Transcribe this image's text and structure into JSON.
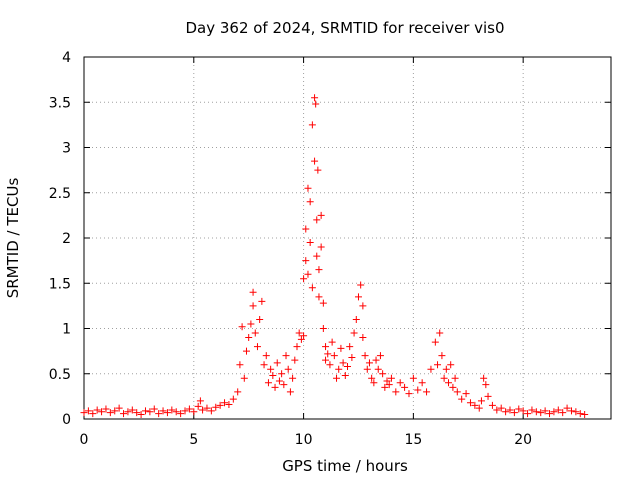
{
  "chart_data": {
    "type": "scatter",
    "title": "Day 362 of 2024, SRMTID for receiver vis0",
    "xlabel": "GPS time / hours",
    "ylabel": "SRMTID / TECUs",
    "xlim": [
      0,
      24
    ],
    "ylim": [
      0,
      4
    ],
    "xticks": [
      0,
      5,
      10,
      15,
      20
    ],
    "yticks": [
      0,
      0.5,
      1,
      1.5,
      2,
      2.5,
      3,
      3.5,
      4
    ],
    "xtick_labels": [
      "0",
      "5",
      "10",
      "15",
      "20"
    ],
    "ytick_labels": [
      "0",
      "0.5",
      "1",
      "1.5",
      "2",
      "2.5",
      "3",
      "3.5",
      "4"
    ],
    "grid": true,
    "marker": "plus",
    "color": "#ff0000",
    "series": [
      {
        "name": "SRMTID",
        "x": [
          0.0,
          0.2,
          0.4,
          0.6,
          0.8,
          1.0,
          1.2,
          1.4,
          1.6,
          1.8,
          2.0,
          2.2,
          2.4,
          2.6,
          2.8,
          3.0,
          3.2,
          3.4,
          3.6,
          3.8,
          4.0,
          4.2,
          4.4,
          4.6,
          4.8,
          5.0,
          5.2,
          5.3,
          5.4,
          5.6,
          5.8,
          6.0,
          6.2,
          6.4,
          6.6,
          6.8,
          7.0,
          7.1,
          7.2,
          7.3,
          7.4,
          7.5,
          7.6,
          7.7,
          7.7,
          7.8,
          7.9,
          8.0,
          8.1,
          8.2,
          8.3,
          8.4,
          8.5,
          8.6,
          8.7,
          8.8,
          8.9,
          9.0,
          9.1,
          9.2,
          9.3,
          9.4,
          9.5,
          9.6,
          9.7,
          9.8,
          9.9,
          10.0,
          10.0,
          10.1,
          10.1,
          10.2,
          10.2,
          10.3,
          10.3,
          10.4,
          10.4,
          10.5,
          10.5,
          10.55,
          10.6,
          10.6,
          10.65,
          10.7,
          10.7,
          10.8,
          10.8,
          10.9,
          10.9,
          11.0,
          11.0,
          11.1,
          11.2,
          11.3,
          11.4,
          11.5,
          11.6,
          11.7,
          11.8,
          11.9,
          12.0,
          12.1,
          12.2,
          12.3,
          12.4,
          12.5,
          12.6,
          12.7,
          12.7,
          12.8,
          12.9,
          13.0,
          13.1,
          13.2,
          13.3,
          13.4,
          13.5,
          13.6,
          13.7,
          13.8,
          13.9,
          14.0,
          14.2,
          14.4,
          14.6,
          14.8,
          15.0,
          15.2,
          15.4,
          15.6,
          15.8,
          16.0,
          16.1,
          16.2,
          16.3,
          16.4,
          16.5,
          16.6,
          16.7,
          16.8,
          16.9,
          17.0,
          17.2,
          17.4,
          17.6,
          17.8,
          18.0,
          18.1,
          18.2,
          18.3,
          18.4,
          18.6,
          18.8,
          19.0,
          19.2,
          19.4,
          19.6,
          19.8,
          20.0,
          20.2,
          20.4,
          20.6,
          20.8,
          21.0,
          21.2,
          21.4,
          21.6,
          21.8,
          22.0,
          22.2,
          22.4,
          22.6,
          22.8
        ],
        "y": [
          0.07,
          0.09,
          0.06,
          0.1,
          0.08,
          0.11,
          0.07,
          0.09,
          0.12,
          0.06,
          0.08,
          0.1,
          0.07,
          0.05,
          0.09,
          0.08,
          0.11,
          0.06,
          0.09,
          0.07,
          0.1,
          0.08,
          0.06,
          0.09,
          0.11,
          0.08,
          0.14,
          0.2,
          0.1,
          0.12,
          0.09,
          0.13,
          0.15,
          0.18,
          0.16,
          0.22,
          0.3,
          0.6,
          1.02,
          0.45,
          0.75,
          0.9,
          1.05,
          1.4,
          1.25,
          0.95,
          0.8,
          1.1,
          1.3,
          0.6,
          0.7,
          0.4,
          0.55,
          0.48,
          0.35,
          0.62,
          0.42,
          0.5,
          0.38,
          0.7,
          0.55,
          0.3,
          0.45,
          0.65,
          0.8,
          0.95,
          0.88,
          0.92,
          1.55,
          1.75,
          2.1,
          1.6,
          2.55,
          1.95,
          2.4,
          1.45,
          3.25,
          2.85,
          3.55,
          3.48,
          2.2,
          1.8,
          2.75,
          1.35,
          1.65,
          2.25,
          1.9,
          1.0,
          1.28,
          0.8,
          0.65,
          0.72,
          0.6,
          0.85,
          0.7,
          0.45,
          0.55,
          0.78,
          0.62,
          0.48,
          0.58,
          0.8,
          0.68,
          0.95,
          1.1,
          1.35,
          1.48,
          1.25,
          0.9,
          0.7,
          0.55,
          0.62,
          0.45,
          0.4,
          0.65,
          0.55,
          0.7,
          0.5,
          0.35,
          0.42,
          0.38,
          0.45,
          0.3,
          0.4,
          0.35,
          0.28,
          0.45,
          0.32,
          0.4,
          0.3,
          0.55,
          0.85,
          0.6,
          0.95,
          0.7,
          0.45,
          0.55,
          0.4,
          0.6,
          0.35,
          0.45,
          0.3,
          0.22,
          0.28,
          0.18,
          0.15,
          0.12,
          0.2,
          0.45,
          0.38,
          0.25,
          0.15,
          0.1,
          0.12,
          0.08,
          0.1,
          0.07,
          0.11,
          0.09,
          0.06,
          0.1,
          0.08,
          0.07,
          0.09,
          0.06,
          0.08,
          0.1,
          0.07,
          0.12,
          0.09,
          0.08,
          0.06,
          0.05
        ]
      }
    ]
  }
}
